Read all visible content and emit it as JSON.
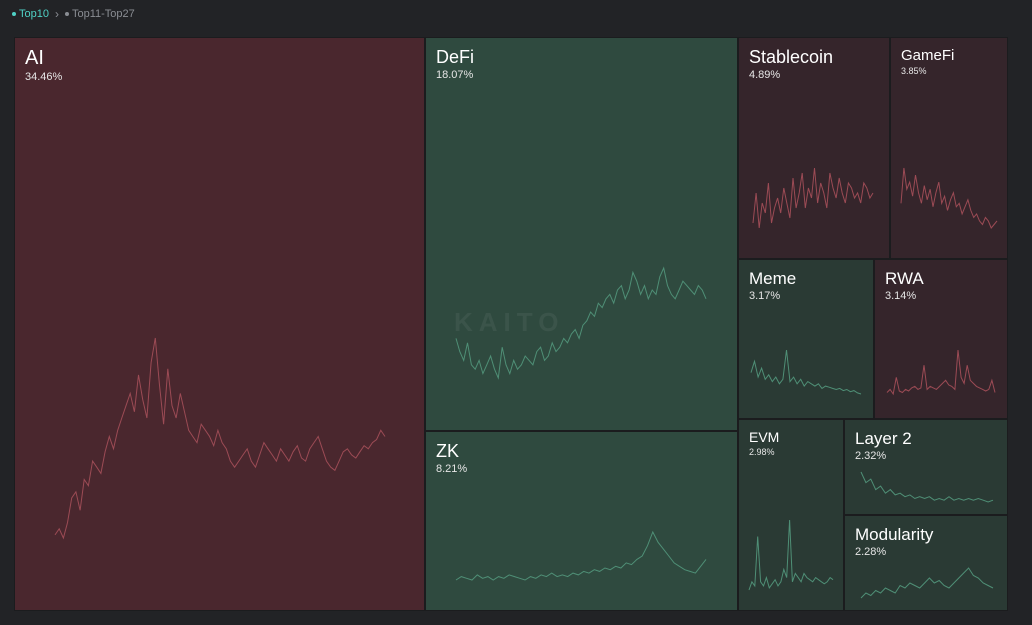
{
  "tabs": [
    {
      "label": "Top10",
      "active": true
    },
    {
      "label": "Top11-Top27",
      "active": false
    }
  ],
  "separator_icon": "chevron-right-icon",
  "watermark": "KAITO",
  "colors": {
    "negative_fill": "#4a272e",
    "negative_fill_dark": "#35252b",
    "negative_line": "#9c4b55",
    "positive_fill": "#2f4a3f",
    "positive_fill_dark": "#2a3a34",
    "positive_line": "#4f8f76"
  },
  "chart_data": {
    "type": "treemap",
    "unit": "%",
    "items": [
      {
        "name": "AI",
        "value": 34.46,
        "label": "34.46%",
        "trend": "down",
        "spark": [
          6,
          8,
          5,
          10,
          18,
          20,
          14,
          24,
          22,
          30,
          28,
          26,
          33,
          38,
          34,
          40,
          44,
          48,
          52,
          46,
          58,
          50,
          44,
          62,
          70,
          55,
          42,
          60,
          48,
          44,
          52,
          46,
          40,
          38,
          36,
          42,
          40,
          38,
          35,
          40,
          36,
          34,
          30,
          28,
          30,
          32,
          34,
          30,
          28,
          32,
          36,
          34,
          32,
          30,
          34,
          32,
          30,
          33,
          35,
          31,
          30,
          34,
          36,
          38,
          34,
          30,
          28,
          27,
          30,
          33,
          34,
          32,
          31,
          33,
          35,
          34,
          36,
          37,
          40,
          38
        ]
      },
      {
        "name": "DeFi",
        "value": 18.07,
        "label": "18.07%",
        "trend": "up",
        "spark": [
          40,
          34,
          30,
          38,
          28,
          26,
          30,
          24,
          28,
          32,
          26,
          22,
          36,
          28,
          24,
          30,
          26,
          28,
          32,
          30,
          28,
          34,
          36,
          30,
          32,
          38,
          34,
          36,
          40,
          38,
          42,
          44,
          40,
          46,
          48,
          52,
          50,
          56,
          54,
          58,
          60,
          56,
          62,
          64,
          58,
          62,
          70,
          66,
          60,
          64,
          58,
          62,
          60,
          68,
          72,
          64,
          60,
          58,
          62,
          66,
          64,
          62,
          60,
          64,
          62,
          58
        ]
      },
      {
        "name": "ZK",
        "value": 8.21,
        "label": "8.21%",
        "trend": "up",
        "spark": [
          10,
          12,
          11,
          10,
          13,
          11,
          12,
          10,
          12,
          11,
          13,
          12,
          11,
          10,
          12,
          11,
          13,
          12,
          14,
          12,
          13,
          12,
          14,
          13,
          15,
          14,
          16,
          15,
          17,
          16,
          18,
          17,
          20,
          19,
          22,
          24,
          30,
          38,
          32,
          28,
          24,
          20,
          18,
          16,
          15,
          14,
          18,
          22
        ]
      },
      {
        "name": "Stablecoin",
        "value": 4.89,
        "label": "4.89%",
        "trend": "down",
        "spark": [
          30,
          42,
          28,
          38,
          34,
          46,
          30,
          36,
          40,
          34,
          44,
          38,
          32,
          48,
          36,
          42,
          50,
          36,
          44,
          40,
          52,
          38,
          46,
          42,
          36,
          50,
          44,
          40,
          48,
          42,
          38,
          46,
          44,
          40,
          42,
          38,
          46,
          44,
          40,
          42
        ]
      },
      {
        "name": "GameFi",
        "value": 3.85,
        "label": "3.85%",
        "trend": "down",
        "spark": [
          40,
          60,
          48,
          52,
          44,
          56,
          46,
          40,
          50,
          42,
          48,
          38,
          46,
          52,
          40,
          44,
          36,
          42,
          46,
          38,
          40,
          34,
          38,
          42,
          36,
          32,
          34,
          30,
          28,
          32,
          30,
          26,
          28,
          30
        ]
      },
      {
        "name": "Meme",
        "value": 3.17,
        "label": "3.17%",
        "trend": "up",
        "spark": [
          30,
          40,
          26,
          34,
          24,
          28,
          22,
          26,
          20,
          24,
          50,
          22,
          26,
          20,
          24,
          18,
          22,
          20,
          18,
          20,
          16,
          18,
          17,
          16,
          15,
          16,
          14,
          15,
          13,
          14,
          12,
          11
        ]
      },
      {
        "name": "RWA",
        "value": 3.14,
        "label": "3.14%",
        "trend": "down",
        "spark": [
          12,
          14,
          11,
          22,
          13,
          12,
          14,
          13,
          15,
          16,
          14,
          15,
          30,
          14,
          16,
          15,
          14,
          16,
          18,
          20,
          17,
          16,
          14,
          40,
          22,
          18,
          30,
          20,
          18,
          16,
          15,
          14,
          13,
          14,
          20,
          12
        ]
      },
      {
        "name": "EVM",
        "value": 2.98,
        "label": "2.98%",
        "trend": "up",
        "spark": [
          10,
          14,
          12,
          36,
          14,
          12,
          16,
          11,
          13,
          15,
          12,
          14,
          20,
          16,
          44,
          14,
          18,
          16,
          14,
          18,
          16,
          15,
          14,
          16,
          15,
          14,
          13,
          14,
          16,
          15
        ]
      },
      {
        "name": "Layer 2",
        "value": 2.32,
        "label": "2.32%",
        "trend": "up",
        "spark": [
          28,
          22,
          24,
          18,
          20,
          16,
          18,
          15,
          16,
          14,
          15,
          13,
          14,
          13,
          14,
          12,
          13,
          12,
          14,
          12,
          13,
          12,
          13,
          12,
          13,
          12,
          11,
          12
        ]
      },
      {
        "name": "Modularity",
        "value": 2.28,
        "label": "2.28%",
        "trend": "up",
        "spark": [
          10,
          12,
          11,
          13,
          12,
          14,
          13,
          12,
          15,
          14,
          16,
          15,
          14,
          16,
          18,
          16,
          17,
          15,
          14,
          16,
          18,
          20,
          22,
          19,
          18,
          16,
          15,
          14
        ]
      }
    ]
  }
}
